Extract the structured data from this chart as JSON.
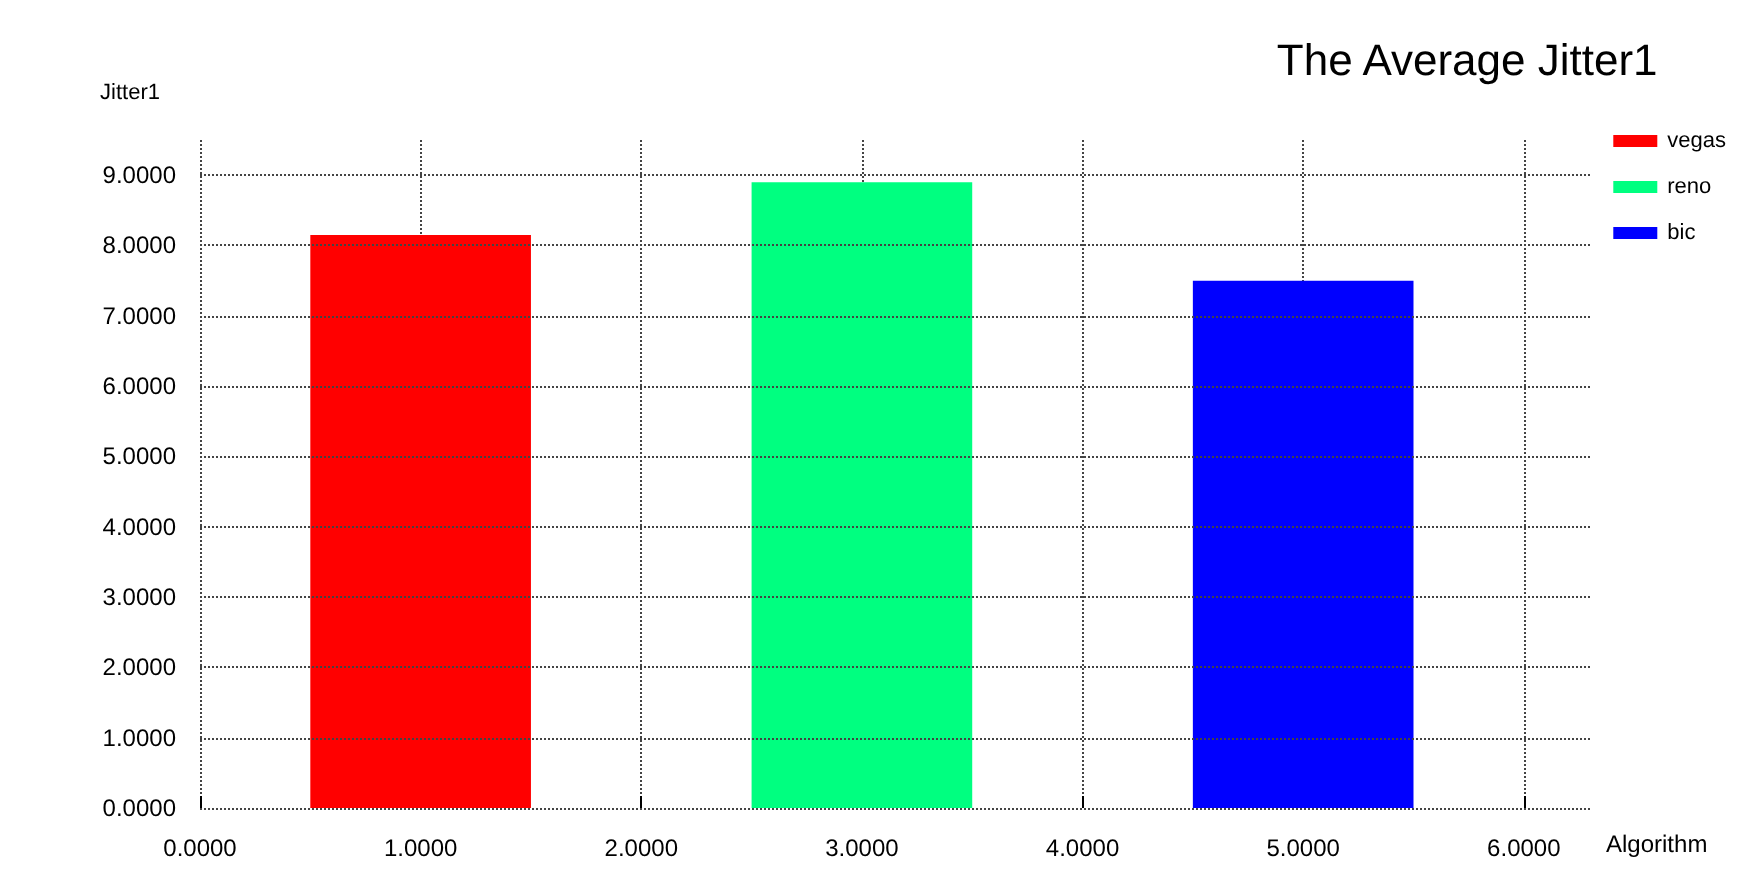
{
  "chart_data": {
    "type": "bar",
    "title": "The Average Jitter1",
    "xlabel": "Algorithm",
    "ylabel": "Jitter1",
    "series": [
      {
        "name": "vegas",
        "color": "#ff0000",
        "x": [
          1
        ],
        "values": [
          8.15
        ]
      },
      {
        "name": "reno",
        "color": "#00ff80",
        "x": [
          3
        ],
        "values": [
          8.9
        ]
      },
      {
        "name": "bic",
        "color": "#0000ff",
        "x": [
          5
        ],
        "values": [
          7.5
        ]
      }
    ],
    "xlim": [
      0,
      6.3
    ],
    "xticks": [
      {
        "value": 0,
        "label": "0.0000"
      },
      {
        "value": 1,
        "label": "1.0000"
      },
      {
        "value": 2,
        "label": "2.0000"
      },
      {
        "value": 3,
        "label": "3.0000"
      },
      {
        "value": 4,
        "label": "4.0000"
      },
      {
        "value": 5,
        "label": "5.0000"
      },
      {
        "value": 6,
        "label": "6.0000"
      }
    ],
    "ylim": [
      0,
      9.5
    ],
    "yticks": [
      {
        "value": 0,
        "label": "0.0000"
      },
      {
        "value": 1,
        "label": "1.0000"
      },
      {
        "value": 2,
        "label": "2.0000"
      },
      {
        "value": 3,
        "label": "3.0000"
      },
      {
        "value": 4,
        "label": "4.0000"
      },
      {
        "value": 5,
        "label": "5.0000"
      },
      {
        "value": 6,
        "label": "6.0000"
      },
      {
        "value": 7,
        "label": "7.0000"
      },
      {
        "value": 8,
        "label": "8.0000"
      },
      {
        "value": 9,
        "label": "9.0000"
      }
    ],
    "grid": true,
    "legend": "right"
  }
}
